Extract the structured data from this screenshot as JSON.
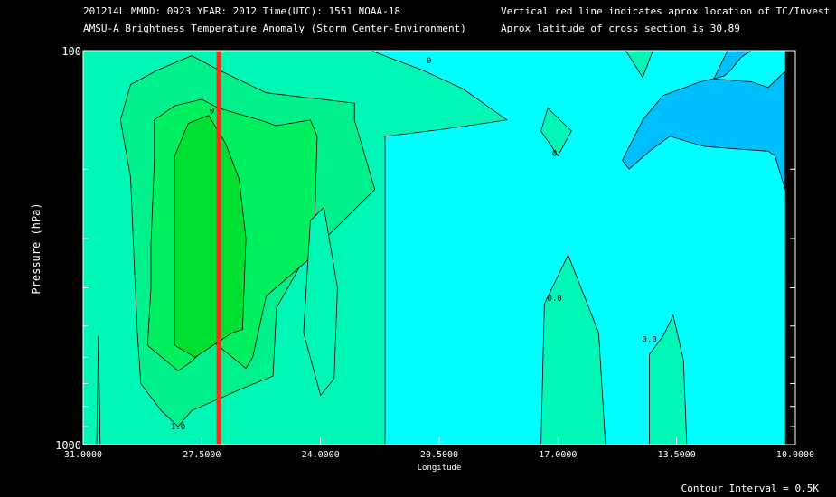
{
  "header": {
    "line1_left": "201214L  MMDD: 0923 YEAR: 2012 Time(UTC): 1551 NOAA-18",
    "line2_left": "AMSU-A Brightness Temperature Anomaly (Storm Center-Environment)",
    "line1_right": "Vertical red line indicates aprox location of TC/Invest",
    "line2_right": "Aprox latitude of cross section is 30.89"
  },
  "footer": {
    "contour_interval": "Contour Interval = 0.5K"
  },
  "colors": {
    "background": "#000000",
    "frame": "#ffffff",
    "level_neg0_5": "#00bfff",
    "level_0": "#00ffff",
    "level_0_5": "#00f7b6",
    "level_1": "#00f08c",
    "level_1_5": "#00f060",
    "level_2": "#00e032",
    "tc_line": "#ff2a1a",
    "contour": "#000000"
  },
  "chart_data": {
    "type": "contour",
    "title": "AMSU-A Brightness Temperature Anomaly (Storm Center-Environment)",
    "xlabel": "Longitude",
    "ylabel": "Pressure (hPa)",
    "x_range": [
      31.0,
      10.0
    ],
    "x_ticks": [
      31.0,
      27.5,
      24.0,
      20.5,
      17.0,
      13.5,
      10.0
    ],
    "x_tick_labels": [
      "31.0000",
      "27.5000",
      "24.0000",
      "20.5000",
      "17.0000",
      "13.5000",
      "10.0000"
    ],
    "y_scale": "log",
    "y_range": [
      1000,
      100
    ],
    "y_ticks": [
      1000,
      100
    ],
    "y_tick_labels": [
      "1000",
      "100"
    ],
    "y_minor_ticks": [
      900,
      800,
      700,
      600,
      500,
      400,
      300,
      200
    ],
    "contour_interval_K": 0.5,
    "tc_longitude": 27.0,
    "cross_section_latitude": 30.89,
    "no_data_east_of_lon": 10.3,
    "contour_labels": [
      {
        "text": "0",
        "lon": 27.2,
        "p": 142
      },
      {
        "text": "0",
        "lon": 20.8,
        "p": 106
      },
      {
        "text": "0",
        "lon": 17.1,
        "p": 182
      },
      {
        "text": "0.0",
        "lon": 17.1,
        "p": 425
      },
      {
        "text": "0.0",
        "lon": 14.3,
        "p": 540
      },
      {
        "text": "1.0",
        "lon": 28.2,
        "p": 900
      }
    ],
    "regions": [
      {
        "name": "band-0.5",
        "value": 0.5,
        "outline": [
          [
            31.0,
            100
          ],
          [
            22.5,
            100
          ],
          [
            22.0,
            104
          ],
          [
            21.0,
            112
          ],
          [
            19.8,
            125
          ],
          [
            18.5,
            150
          ],
          [
            20.3,
            158
          ],
          [
            22.1,
            165
          ],
          [
            22.1,
            1000
          ],
          [
            31.0,
            1000
          ]
        ]
      },
      {
        "name": "core-1.0",
        "value": 1.0,
        "outline": [
          [
            29.5,
            340
          ],
          [
            29.6,
            210
          ],
          [
            29.9,
            150
          ],
          [
            29.6,
            122
          ],
          [
            28.8,
            112
          ],
          [
            27.8,
            103
          ],
          [
            27.0,
            112
          ],
          [
            25.6,
            128
          ],
          [
            23.0,
            136
          ],
          [
            23.0,
            150
          ],
          [
            22.4,
            225
          ],
          [
            24.5,
            340
          ],
          [
            25.3,
            450
          ],
          [
            25.4,
            670
          ],
          [
            26.3,
            720
          ],
          [
            27.8,
            820
          ],
          [
            28.2,
            900
          ],
          [
            28.7,
            820
          ],
          [
            29.3,
            700
          ],
          [
            29.4,
            520
          ]
        ]
      },
      {
        "name": "core-1.5",
        "value": 1.5,
        "outline": [
          [
            29.0,
            310
          ],
          [
            28.9,
            190
          ],
          [
            28.9,
            150
          ],
          [
            28.3,
            138
          ],
          [
            27.5,
            133
          ],
          [
            27.0,
            140
          ],
          [
            25.8,
            150
          ],
          [
            25.3,
            155
          ],
          [
            24.3,
            150
          ],
          [
            24.1,
            165
          ],
          [
            24.2,
            330
          ],
          [
            25.6,
            420
          ],
          [
            26.0,
            600
          ],
          [
            26.2,
            640
          ],
          [
            27.2,
            545
          ],
          [
            27.8,
            615
          ],
          [
            28.2,
            650
          ],
          [
            29.1,
            560
          ],
          [
            29.0,
            400
          ]
        ]
      },
      {
        "name": "core-2.0",
        "value": 2.0,
        "outline": [
          [
            28.3,
            185
          ],
          [
            27.9,
            153
          ],
          [
            27.3,
            146
          ],
          [
            26.8,
            172
          ],
          [
            26.4,
            212
          ],
          [
            26.2,
            300
          ],
          [
            26.3,
            510
          ],
          [
            26.6,
            520
          ],
          [
            27.7,
            600
          ],
          [
            28.3,
            560
          ],
          [
            28.3,
            400
          ]
        ]
      },
      {
        "name": "spike-a",
        "value": 0.5,
        "outline": [
          [
            30.55,
            530
          ],
          [
            30.6,
            1000
          ],
          [
            30.5,
            1000
          ]
        ]
      },
      {
        "name": "spike-b",
        "value": 0.5,
        "outline": [
          [
            24.5,
            520
          ],
          [
            24.3,
            270
          ],
          [
            23.9,
            250
          ],
          [
            23.5,
            400
          ],
          [
            23.6,
            680
          ],
          [
            24.0,
            750
          ]
        ]
      },
      {
        "name": "spike-c",
        "value": 0.5,
        "outline": [
          [
            15.0,
            100
          ],
          [
            14.5,
            117
          ],
          [
            14.2,
            100
          ]
        ]
      },
      {
        "name": "spike-d",
        "value": 0.5,
        "outline": [
          [
            17.3,
            140
          ],
          [
            17.5,
            160
          ],
          [
            17.0,
            185
          ],
          [
            16.6,
            160
          ]
        ]
      },
      {
        "name": "spike-e",
        "value": 0.5,
        "outline": [
          [
            16.7,
            330
          ],
          [
            17.4,
            440
          ],
          [
            17.5,
            1000
          ],
          [
            15.6,
            1000
          ],
          [
            15.8,
            520
          ]
        ]
      },
      {
        "name": "spike-f",
        "value": 0.5,
        "outline": [
          [
            13.6,
            470
          ],
          [
            13.9,
            530
          ],
          [
            14.3,
            590
          ],
          [
            14.3,
            1000
          ],
          [
            13.2,
            1000
          ],
          [
            13.3,
            610
          ]
        ]
      },
      {
        "name": "cold-neg0.5",
        "value": -0.5,
        "outline": [
          [
            11.3,
            100
          ],
          [
            11.6,
            104
          ],
          [
            11.9,
            112
          ],
          [
            12.1,
            116
          ],
          [
            12.8,
            120
          ],
          [
            13.9,
            130
          ],
          [
            14.5,
            150
          ],
          [
            15.1,
            190
          ],
          [
            14.9,
            200
          ],
          [
            14.3,
            180
          ],
          [
            13.7,
            165
          ],
          [
            12.7,
            175
          ],
          [
            11.6,
            178
          ],
          [
            10.8,
            180
          ],
          [
            10.6,
            185
          ],
          [
            10.3,
            225
          ],
          [
            10.3,
            113
          ],
          [
            10.8,
            124
          ],
          [
            11.3,
            120
          ],
          [
            12.4,
            118
          ],
          [
            12.0,
            100
          ]
        ]
      }
    ]
  }
}
